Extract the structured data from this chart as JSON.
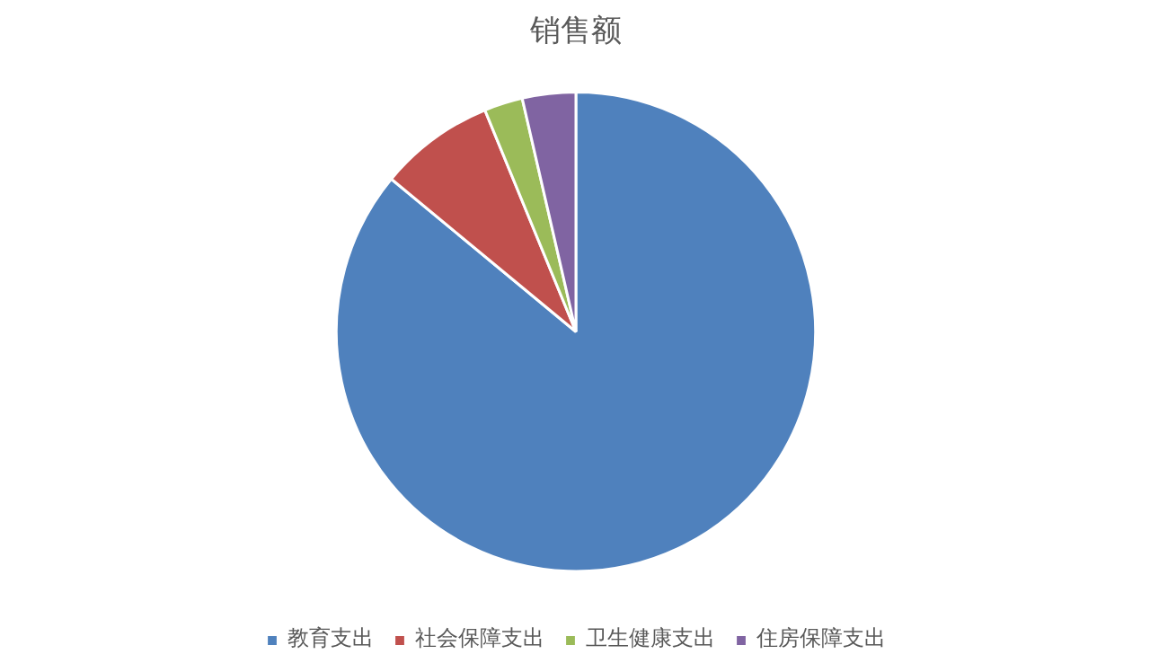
{
  "chart_data": {
    "type": "pie",
    "title": "销售额",
    "categories": [
      "教育支出",
      "社会保障支出",
      "卫生健康支出",
      "住房保障支出"
    ],
    "values": [
      86,
      7.8,
      2.6,
      3.6
    ],
    "colors": [
      "#4f81bd",
      "#c0504d",
      "#9bbb59",
      "#8064a2"
    ],
    "legend": "bottom"
  }
}
